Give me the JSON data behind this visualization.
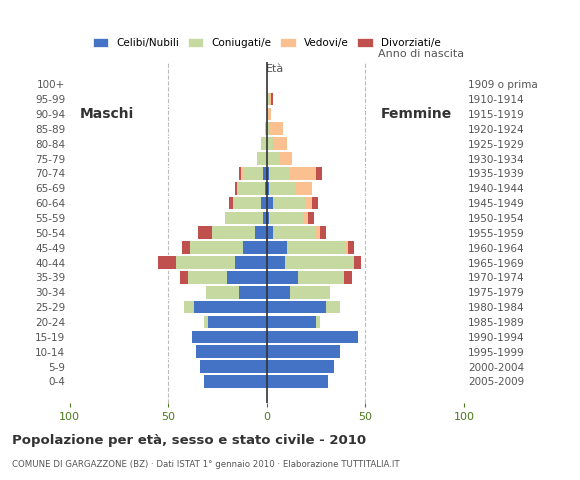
{
  "age_groups": [
    "0-4",
    "5-9",
    "10-14",
    "15-19",
    "20-24",
    "25-29",
    "30-34",
    "35-39",
    "40-44",
    "45-49",
    "50-54",
    "55-59",
    "60-64",
    "65-69",
    "70-74",
    "75-79",
    "80-84",
    "85-89",
    "90-94",
    "95-99",
    "100+"
  ],
  "birth_years": [
    "2005-2009",
    "2000-2004",
    "1995-1999",
    "1990-1994",
    "1985-1989",
    "1980-1984",
    "1975-1979",
    "1970-1974",
    "1965-1969",
    "1960-1964",
    "1955-1959",
    "1950-1954",
    "1945-1949",
    "1940-1944",
    "1935-1939",
    "1930-1934",
    "1925-1929",
    "1920-1924",
    "1915-1919",
    "1910-1914",
    "1909 o prima"
  ],
  "males": {
    "celibi": [
      32,
      34,
      36,
      38,
      30,
      37,
      14,
      20,
      16,
      12,
      6,
      2,
      3,
      1,
      2,
      0,
      0,
      0,
      0,
      0,
      0
    ],
    "coniugati": [
      0,
      0,
      0,
      0,
      2,
      5,
      17,
      20,
      30,
      27,
      22,
      19,
      14,
      14,
      10,
      5,
      3,
      1,
      0,
      0,
      0
    ],
    "vedovi": [
      0,
      0,
      0,
      0,
      0,
      0,
      0,
      0,
      0,
      0,
      0,
      0,
      0,
      0,
      1,
      0,
      0,
      0,
      0,
      0,
      0
    ],
    "divorziati": [
      0,
      0,
      0,
      0,
      0,
      0,
      0,
      4,
      9,
      4,
      7,
      0,
      2,
      1,
      1,
      0,
      0,
      0,
      0,
      0,
      0
    ]
  },
  "females": {
    "nubili": [
      31,
      34,
      37,
      46,
      25,
      30,
      12,
      16,
      9,
      10,
      3,
      1,
      3,
      1,
      1,
      0,
      0,
      0,
      0,
      0,
      0
    ],
    "coniugate": [
      0,
      0,
      0,
      0,
      2,
      7,
      20,
      23,
      35,
      30,
      22,
      18,
      17,
      14,
      11,
      6,
      3,
      1,
      0,
      1,
      0
    ],
    "vedove": [
      0,
      0,
      0,
      0,
      0,
      0,
      0,
      0,
      0,
      1,
      2,
      2,
      3,
      8,
      13,
      7,
      7,
      7,
      2,
      1,
      0
    ],
    "divorziate": [
      0,
      0,
      0,
      0,
      0,
      0,
      0,
      4,
      4,
      3,
      3,
      3,
      3,
      0,
      3,
      0,
      0,
      0,
      0,
      1,
      0
    ]
  },
  "colors": {
    "celibi": "#4472C4",
    "coniugati": "#C6D9A0",
    "vedovi": "#FAC090",
    "divorziati": "#C0504D"
  },
  "xlim": 100,
  "title": "Popolazione per età, sesso e stato civile - 2010",
  "subtitle": "COMUNE DI GARGAZZONE (BZ) · Dati ISTAT 1° gennaio 2010 · Elaborazione TUTTITALIA.IT",
  "ylabel_left": "Età",
  "ylabel_right": "Anno di nascita",
  "label_maschi": "Maschi",
  "label_femmine": "Femmine",
  "legend_labels": [
    "Celibi/Nubili",
    "Coniugati/e",
    "Vedovi/e",
    "Divorziati/e"
  ],
  "background_color": "#ffffff",
  "grid_color": "#bbbbbb",
  "bar_height": 0.85
}
